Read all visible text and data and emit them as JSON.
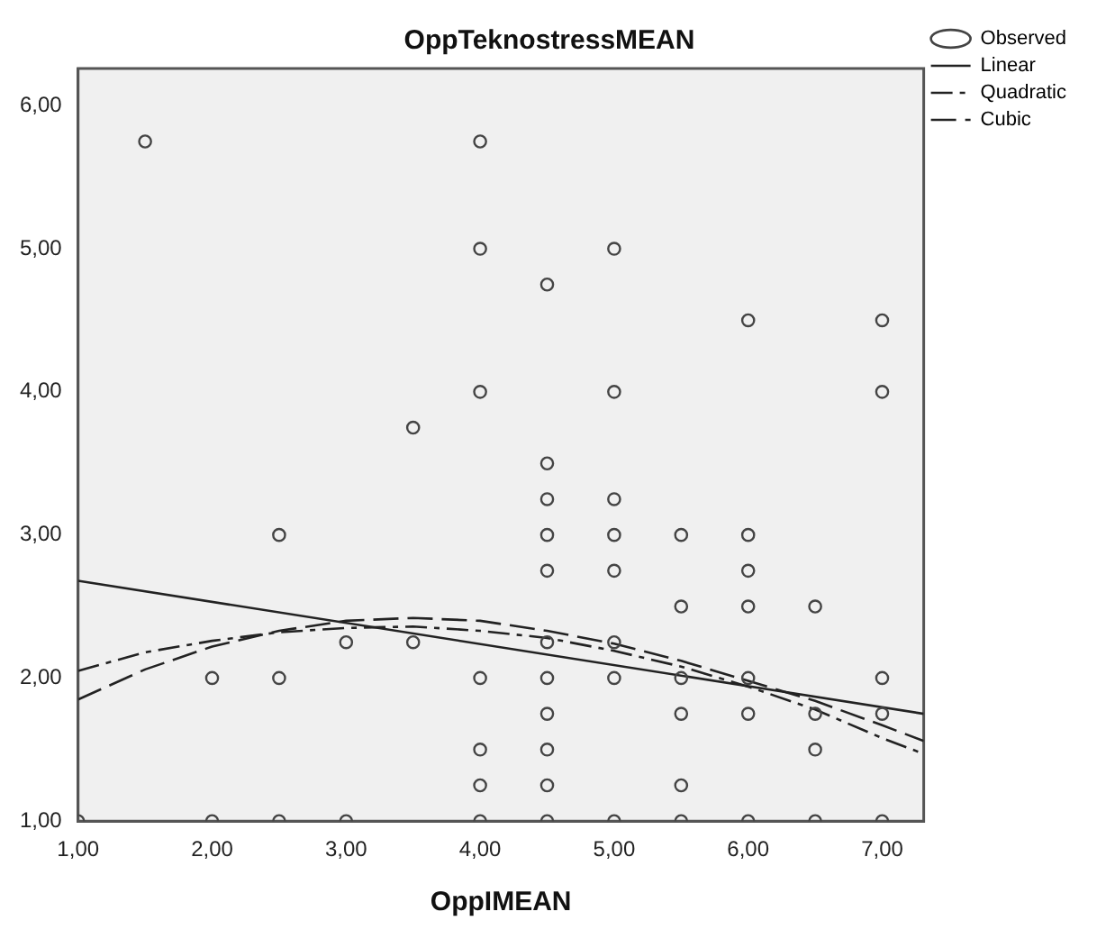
{
  "chart_data": {
    "type": "scatter",
    "title": "OppTeknostressMEAN",
    "xlabel": "OppIMEAN",
    "xlim": [
      1,
      7.31
    ],
    "ylim": [
      1,
      6.26
    ],
    "xticks": [
      {
        "value": 1,
        "label": "1,00"
      },
      {
        "value": 2,
        "label": "2,00"
      },
      {
        "value": 3,
        "label": "3,00"
      },
      {
        "value": 4,
        "label": "4,00"
      },
      {
        "value": 5,
        "label": "5,00"
      },
      {
        "value": 6,
        "label": "6,00"
      },
      {
        "value": 7,
        "label": "7,00"
      }
    ],
    "yticks": [
      {
        "value": 1,
        "label": "1,00"
      },
      {
        "value": 2,
        "label": "2,00"
      },
      {
        "value": 3,
        "label": "3,00"
      },
      {
        "value": 4,
        "label": "4,00"
      },
      {
        "value": 5,
        "label": "5,00"
      },
      {
        "value": 6,
        "label": "6,00"
      }
    ],
    "grid": false,
    "legend": "top right",
    "series": [
      {
        "name": "Observed",
        "type": "scatter",
        "color": "#444444",
        "marker": "circle",
        "x": [
          1,
          1.5,
          2,
          2,
          2.5,
          2.5,
          2.5,
          3,
          3,
          3.5,
          3.5,
          4,
          4,
          4,
          4,
          4,
          4,
          4,
          4.5,
          4.5,
          4.5,
          4.5,
          4.5,
          4.5,
          4.5,
          4.5,
          4.5,
          4.5,
          4.5,
          5,
          5,
          5,
          5,
          5,
          5,
          5,
          5,
          5.5,
          5.5,
          5.5,
          5.5,
          5.5,
          5.5,
          6,
          6,
          6,
          6,
          6,
          6,
          6,
          6.5,
          6.5,
          6.5,
          6.5,
          7,
          7,
          7,
          7,
          7
        ],
        "values": [
          1,
          5.75,
          2,
          1,
          3,
          2,
          1,
          2.25,
          1,
          3.75,
          2.25,
          5.75,
          5,
          4,
          2,
          1.5,
          1.25,
          1,
          4.75,
          3.5,
          3.25,
          3,
          2.75,
          2.25,
          2,
          1.75,
          1.5,
          1.25,
          1,
          5,
          4,
          3.25,
          3,
          2.75,
          2.25,
          2,
          1,
          3,
          2.5,
          2,
          1.75,
          1.25,
          1,
          4.5,
          3,
          2.75,
          2.5,
          2,
          1.75,
          1,
          2.5,
          1.75,
          1.5,
          1,
          4.5,
          4,
          2,
          1.75,
          1
        ]
      },
      {
        "name": "Linear",
        "type": "line",
        "color": "#222222",
        "marker": "none",
        "line_style": "solid",
        "x": [
          1,
          7.31
        ],
        "values": [
          2.68,
          1.75
        ]
      },
      {
        "name": "Quadratic",
        "type": "line",
        "color": "#222222",
        "marker": "none",
        "line_style": "dashed",
        "x": [
          1,
          1.5,
          2,
          2.5,
          3,
          3.5,
          4,
          4.5,
          5,
          5.5,
          6,
          6.5,
          7,
          7.31
        ],
        "values": [
          2.05,
          2.18,
          2.26,
          2.32,
          2.35,
          2.36,
          2.33,
          2.28,
          2.19,
          2.08,
          1.94,
          1.78,
          1.58,
          1.47
        ]
      },
      {
        "name": "Cubic",
        "type": "line",
        "color": "#222222",
        "marker": "none",
        "line_style": "dashed",
        "x": [
          1,
          1.5,
          2,
          2.5,
          3,
          3.5,
          4,
          4.5,
          5,
          5.5,
          6,
          6.5,
          7,
          7.31
        ],
        "values": [
          1.85,
          2.06,
          2.22,
          2.33,
          2.4,
          2.42,
          2.4,
          2.33,
          2.24,
          2.12,
          1.98,
          1.84,
          1.67,
          1.56
        ]
      }
    ]
  }
}
